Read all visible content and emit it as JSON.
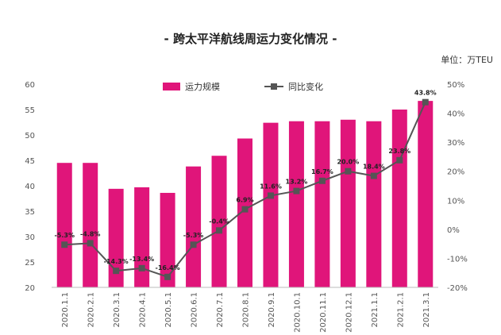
{
  "title": "- 跨太平洋航线周运力变化情况 -",
  "unit": "单位：万TEU",
  "legend": {
    "bar": "运力规模",
    "line": "同比变化"
  },
  "colors": {
    "bar": "#e0157a",
    "line": "#555555",
    "marker": "#555555"
  },
  "chart_data": {
    "type": "bar",
    "categories": [
      "2020.1.1",
      "2020.2.1",
      "2020.3.1",
      "2020.4.1",
      "2020.5.1",
      "2020.6.1",
      "2020.7.1",
      "2020.8.1",
      "2020.9.1",
      "2020.10.1",
      "2020.11.1",
      "2020.12.1",
      "2021.1.1",
      "2021.2.1",
      "2021.3.1"
    ],
    "series": [
      {
        "name": "运力规模",
        "type": "bar",
        "axis": "left",
        "values": [
          44.5,
          44.5,
          39.4,
          39.7,
          38.6,
          43.8,
          45.9,
          49.3,
          52.4,
          52.7,
          52.7,
          53.0,
          52.7,
          55.0,
          56.7
        ]
      },
      {
        "name": "同比变化",
        "type": "line",
        "axis": "right",
        "values": [
          -5.3,
          -4.8,
          -14.3,
          -13.4,
          -16.4,
          -5.3,
          -0.4,
          6.9,
          11.6,
          13.2,
          16.7,
          20.0,
          18.4,
          23.8,
          43.8
        ],
        "labels": [
          "-5.3%",
          "-4.8%",
          "-14.3%",
          "-13.4%",
          "-16.4%",
          "-5.3%",
          "-0.4%",
          "6.9%",
          "11.6%",
          "13.2%",
          "16.7%",
          "20.0%",
          "18.4%",
          "23.8%",
          "43.8%"
        ]
      }
    ],
    "ylim": [
      20,
      60
    ],
    "yticks": [
      "20",
      "25",
      "30",
      "35",
      "40",
      "45",
      "50",
      "55",
      "60"
    ],
    "y2lim": [
      -20,
      50
    ],
    "y2ticks": [
      "-20%",
      "-10%",
      "0%",
      "10%",
      "20%",
      "30%",
      "40%",
      "50%"
    ],
    "grid": false,
    "legend_position": "top"
  }
}
